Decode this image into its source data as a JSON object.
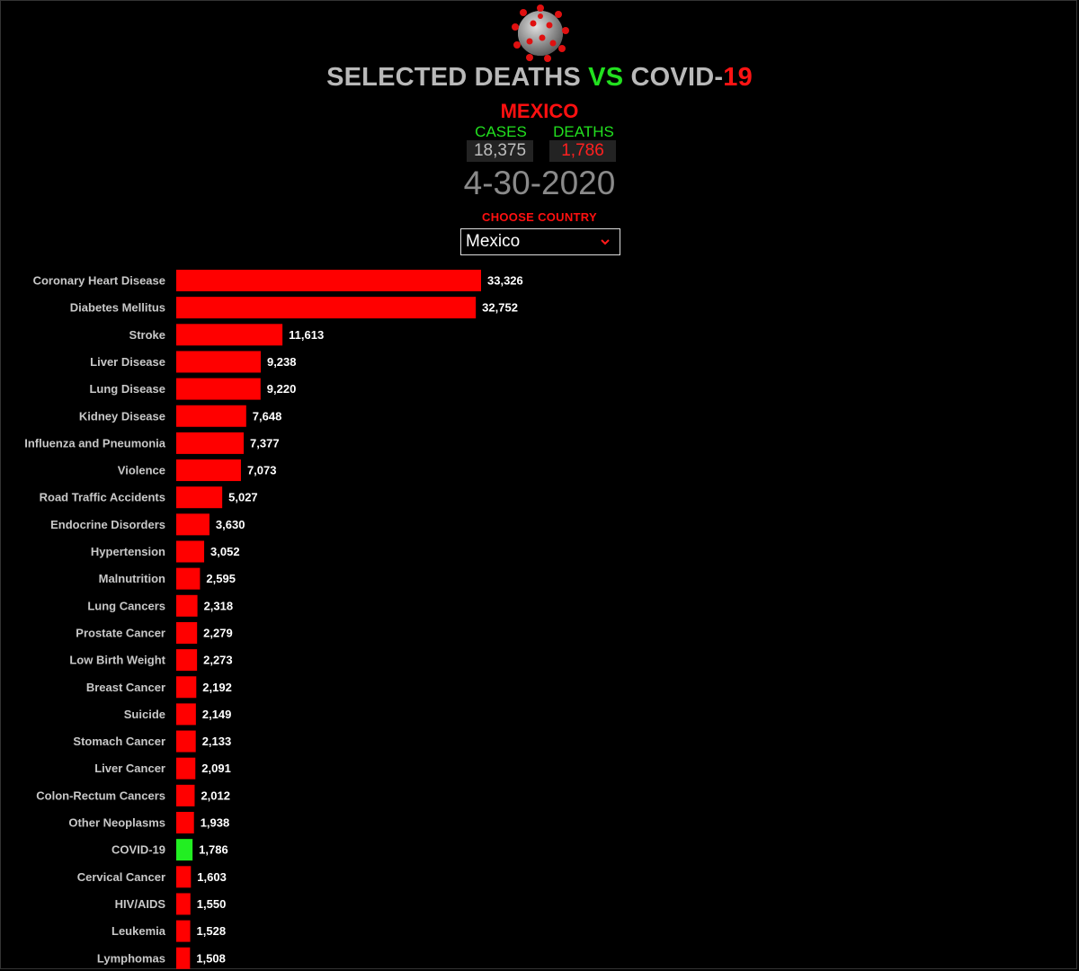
{
  "header": {
    "title_part1": "SELECTED DEATHS ",
    "title_vs": "VS",
    "title_part2": " COVID-",
    "title_19": "19",
    "country": "MEXICO",
    "cases_label": "CASES",
    "deaths_label": "DEATHS",
    "cases_value": "18,375",
    "deaths_value": "1,786",
    "date": "4-30-2020",
    "choose_label": "CHOOSE COUNTRY",
    "selected_country": "Mexico",
    "virus_icon": "coronavirus-icon"
  },
  "colors": {
    "bar": "#ff0000",
    "highlight_bar": "#22ee22",
    "label": "#c8c8c8",
    "value_label": "#ffffff"
  },
  "chart_data": {
    "type": "bar",
    "orientation": "horizontal",
    "highlight": "COVID-19",
    "categories": [
      "Coronary Heart Disease",
      "Diabetes Mellitus",
      "Stroke",
      "Liver Disease",
      "Lung Disease",
      "Kidney Disease",
      "Influenza and Pneumonia",
      "Violence",
      "Road Traffic Accidents",
      "Endocrine Disorders",
      "Hypertension",
      "Malnutrition",
      "Lung Cancers",
      "Prostate Cancer",
      "Low Birth Weight",
      "Breast Cancer",
      "Suicide",
      "Stomach Cancer",
      "Liver Cancer",
      "Colon-Rectum Cancers",
      "Other Neoplasms",
      "COVID-19",
      "Cervical Cancer",
      "HIV/AIDS",
      "Leukemia",
      "Lymphomas"
    ],
    "values": [
      33326,
      32752,
      11613,
      9238,
      9220,
      7648,
      7377,
      7073,
      5027,
      3630,
      3052,
      2595,
      2318,
      2279,
      2273,
      2192,
      2149,
      2133,
      2091,
      2012,
      1938,
      1786,
      1603,
      1550,
      1528,
      1508
    ],
    "value_labels": [
      "33,326",
      "32,752",
      "11,613",
      "9,238",
      "9,220",
      "7,648",
      "7,377",
      "7,073",
      "5,027",
      "3,630",
      "3,052",
      "2,595",
      "2,318",
      "2,279",
      "2,273",
      "2,192",
      "2,149",
      "2,133",
      "2,091",
      "2,012",
      "1,938",
      "1,786",
      "1,603",
      "1,550",
      "1,528",
      "1,508"
    ],
    "title": "",
    "xlabel": "",
    "ylabel": "",
    "grid": false,
    "legend": "none"
  }
}
